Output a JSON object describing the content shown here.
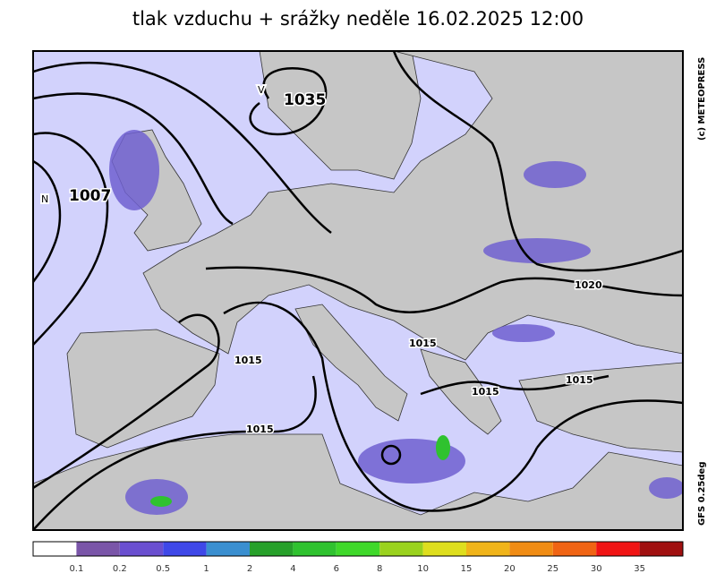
{
  "header": {
    "title": "tlak vzduchu + srážky  neděle 16.02.2025 12:00"
  },
  "map": {
    "centers": [
      {
        "letter": "V",
        "value": "1035"
      },
      {
        "letter": "N",
        "value": "1007"
      }
    ],
    "isobar_labels": [
      "1020",
      "1015",
      "1015",
      "1015",
      "1015",
      "1015"
    ]
  },
  "credits": {
    "copyright": "(c) METEOPRESS",
    "model": "GFS 0.25deg"
  },
  "legend": {
    "colors": [
      "#ffffff",
      "#7a55a8",
      "#6a4fd0",
      "#3f48e8",
      "#3a8fd0",
      "#27a02a",
      "#2fc22f",
      "#3fd82a",
      "#9ad21e",
      "#dede1e",
      "#f0b41a",
      "#f08c14",
      "#f06414",
      "#f01414",
      "#a01010"
    ],
    "labels": [
      "0.1",
      "0.2",
      "0.5",
      "1",
      "2",
      "4",
      "6",
      "8",
      "10",
      "15",
      "20",
      "25",
      "30",
      "35"
    ]
  }
}
